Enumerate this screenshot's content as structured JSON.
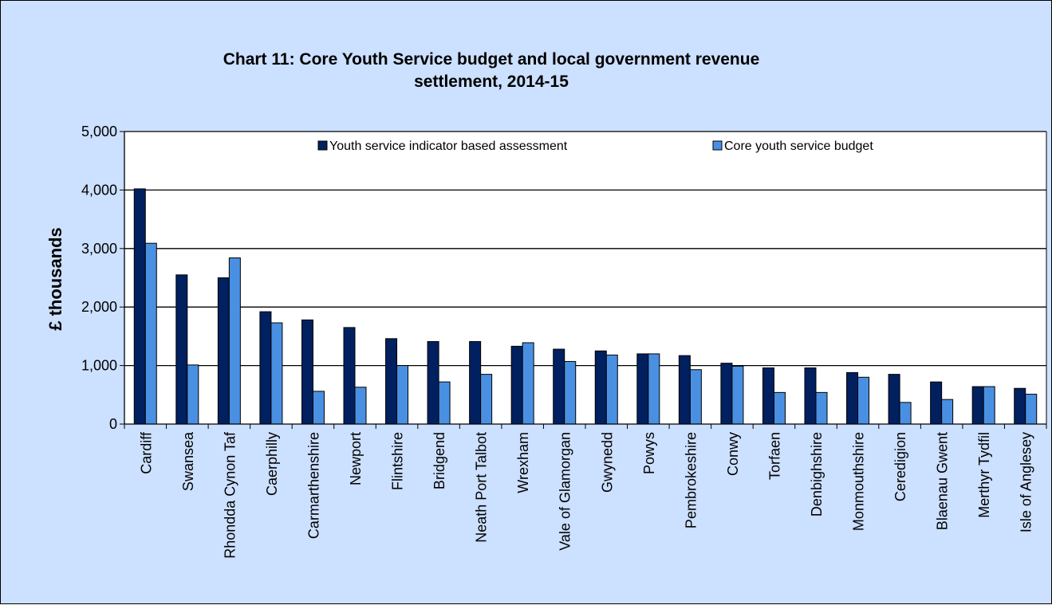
{
  "chart_data": {
    "type": "bar",
    "title_lines": [
      "Chart 11: Core Youth Service budget and local government revenue",
      "settlement, 2014-15"
    ],
    "ylabel": "£ thousands",
    "xlabel": "",
    "ylim": [
      0,
      5000
    ],
    "yticks": [
      0,
      1000,
      2000,
      3000,
      4000,
      5000
    ],
    "ytick_labels": [
      "0",
      "1,000",
      "2,000",
      "3,000",
      "4,000",
      "5,000"
    ],
    "grid": true,
    "legend_position": "top",
    "categories": [
      "Cardiff",
      "Swansea",
      "Rhondda Cynon Taf",
      "Caerphilly",
      "Carmarthenshire",
      "Newport",
      "Flintshire",
      "Bridgend",
      "Neath Port Talbot",
      "Wrexham",
      "Vale of Glamorgan",
      "Gwynedd",
      "Powys",
      "Pembrokeshire",
      "Conwy",
      "Torfaen",
      "Denbighshire",
      "Monmouthshire",
      "Ceredigion",
      "Blaenau Gwent",
      "Merthyr Tydfil",
      "Isle of Anglesey"
    ],
    "series": [
      {
        "name": "Youth service indicator based assessment",
        "color": "#002060",
        "values": [
          4020,
          2550,
          2500,
          1920,
          1780,
          1650,
          1460,
          1410,
          1410,
          1330,
          1280,
          1250,
          1200,
          1170,
          1040,
          960,
          960,
          880,
          850,
          720,
          640,
          610
        ]
      },
      {
        "name": "Core youth service budget",
        "color": "#4a90e2",
        "values": [
          3090,
          1010,
          2840,
          1730,
          560,
          630,
          1000,
          720,
          850,
          1390,
          1070,
          1180,
          1200,
          930,
          990,
          540,
          540,
          800,
          370,
          420,
          640,
          510
        ]
      }
    ]
  }
}
